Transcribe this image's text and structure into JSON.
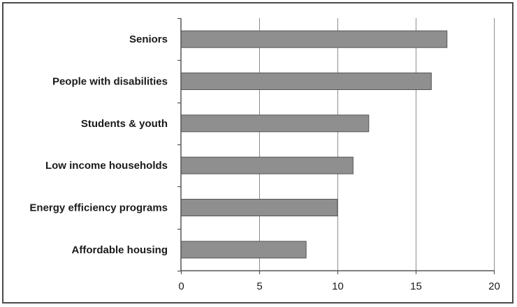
{
  "chart_data": {
    "type": "bar",
    "orientation": "horizontal",
    "title": "",
    "xlabel": "",
    "ylabel": "",
    "categories": [
      "Seniors",
      "People with disabilities",
      "Students & youth",
      "Low income households",
      "Energy efficiency programs",
      "Affordable housing"
    ],
    "values": [
      17,
      16,
      12,
      11,
      10,
      8
    ],
    "xlim": [
      0,
      20
    ],
    "xticks": [
      0,
      5,
      10,
      15,
      20
    ],
    "grid": "vertical major gridlines",
    "legend": "none",
    "bar_color": "#8f8f8f",
    "bar_outline_color": "#555555",
    "gridline_color": "#8c8c8c"
  }
}
